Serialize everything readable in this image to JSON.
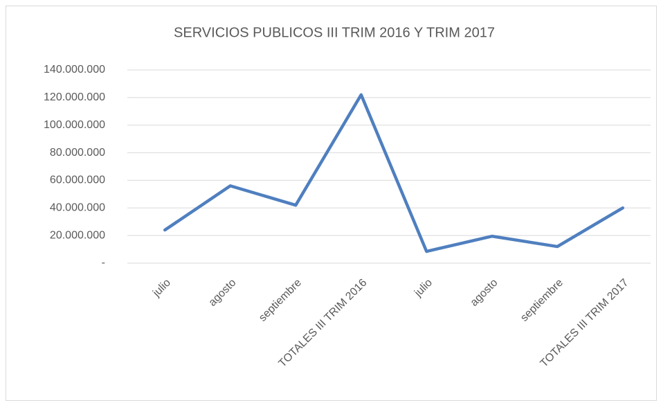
{
  "chart_data": {
    "type": "line",
    "title": "SERVICIOS PUBLICOS III TRIM 2016 Y TRIM 2017",
    "categories": [
      "julio",
      "agosto",
      "septiembre",
      "TOTALES III TRIM 2016",
      "julio",
      "agosto",
      "septiembre",
      "TOTALES III TRIM 2017"
    ],
    "series": [
      {
        "name": "SERVICIOS PUBLICOS",
        "color": "#4f7fbf",
        "values": [
          24000000,
          56000000,
          42000000,
          122000000,
          8500000,
          19500000,
          12000000,
          40000000
        ]
      }
    ],
    "ylim": [
      0,
      140000000
    ],
    "yticks": [
      {
        "value": 0,
        "label": "-"
      },
      {
        "value": 20000000,
        "label": "20.000.000"
      },
      {
        "value": 40000000,
        "label": "40.000.000"
      },
      {
        "value": 60000000,
        "label": "60.000.000"
      },
      {
        "value": 80000000,
        "label": "80.000.000"
      },
      {
        "value": 100000000,
        "label": "100.000.000"
      },
      {
        "value": 120000000,
        "label": "120.000.000"
      },
      {
        "value": 140000000,
        "label": "140.000.000"
      }
    ],
    "grid": true
  }
}
